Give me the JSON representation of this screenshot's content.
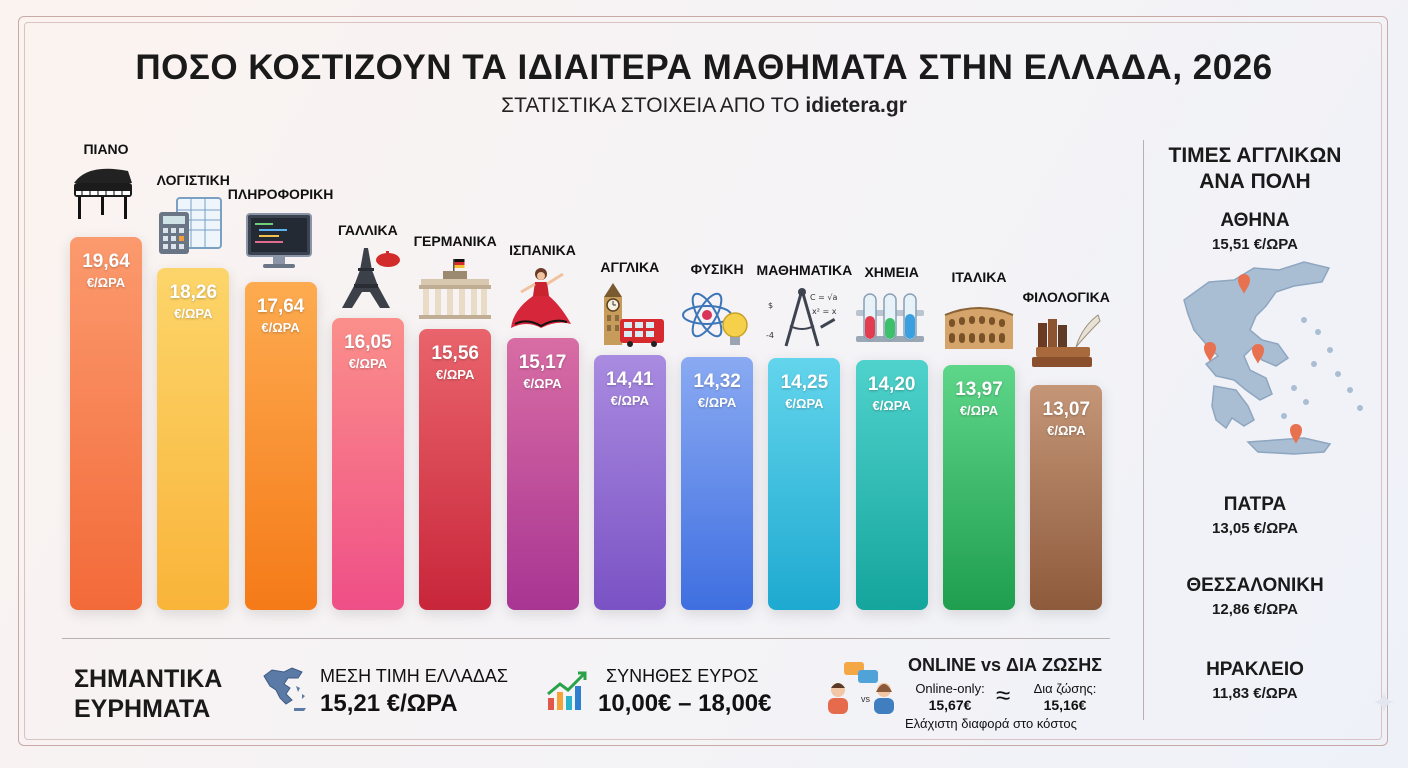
{
  "title": "ΠΟΣΟ ΚΟΣΤΙΖΟΥΝ ΤΑ ΙΔΙΑΙΤΕΡΑ ΜΑΘΗΜΑΤΑ ΣΤΗΝ ΕΛΛΑΔΑ, 2026",
  "subtitle_prefix": "ΣΤΑΤΙΣΤΙΚΑ ΣΤΟΙΧΕΙΑ ΑΠΟ ΤΟ",
  "subtitle_site": "idietera.gr",
  "chart_data": {
    "type": "bar",
    "categories": [
      "ΠΙΑΝΟ",
      "ΛΟΓΙΣΤΙΚΗ",
      "ΠΛΗΡΟΦΟΡΙΚΗ",
      "ΓΑΛΛΙΚΑ",
      "ΓΕΡΜΑΝΙΚΑ",
      "ΙΣΠΑΝΙΚΑ",
      "ΑΓΓΛΙΚΑ",
      "ΦΥΣΙΚΗ",
      "ΜΑΘΗΜΑΤΙΚΑ",
      "ΧΗΜΕΙΑ",
      "ΙΤΑΛΙΚΑ",
      "ΦΙΛΟΛΟΓΙΚΑ"
    ],
    "values": [
      19.64,
      18.26,
      17.64,
      16.05,
      15.56,
      15.17,
      14.41,
      14.32,
      14.25,
      14.2,
      13.97,
      13.07
    ],
    "value_labels": [
      "19,64",
      "18,26",
      "17,64",
      "16,05",
      "15,56",
      "15,17",
      "14,41",
      "14,32",
      "14,25",
      "14,20",
      "13,97",
      "13,07"
    ],
    "unit": "€/ΩΡΑ",
    "icons": [
      "piano-icon",
      "calculator-spreadsheet-icon",
      "computer-monitor-icon",
      "eiffel-tower-icon",
      "brandenburg-gate-icon",
      "flamenco-dancer-icon",
      "big-ben-bus-icon",
      "atom-lightbulb-icon",
      "compass-formulas-icon",
      "test-tubes-icon",
      "colosseum-icon",
      "books-quill-icon"
    ],
    "colors": [
      [
        "#fb9a6e",
        "#f36a39"
      ],
      [
        "#fcd56a",
        "#f9b43a"
      ],
      [
        "#fdab50",
        "#f57a18"
      ],
      [
        "#fb8f8a",
        "#ef4f87"
      ],
      [
        "#e9646c",
        "#c8263a"
      ],
      [
        "#d86da4",
        "#a83592"
      ],
      [
        "#a98be0",
        "#7a52c4"
      ],
      [
        "#8aaaf2",
        "#3f6fe0"
      ],
      [
        "#63d5ec",
        "#1ea9d0"
      ],
      [
        "#4fd2cc",
        "#14a59c"
      ],
      [
        "#5ed689",
        "#1f9e4f"
      ],
      [
        "#c49677",
        "#8e5a3c"
      ]
    ],
    "ylim": [
      0,
      20
    ]
  },
  "findings": {
    "title_line1": "ΣΗΜΑΝΤΙΚΑ",
    "title_line2": "ΕΥΡΗΜΑΤΑ",
    "avg_label": "ΜΕΣΗ ΤΙΜΗ ΕΛΛΑΔΑΣ",
    "avg_value": "15,21 €/ΩΡΑ",
    "range_label": "ΣΥΝΗΘΕΣ ΕΥΡΟΣ",
    "range_value": "10,00€ – 18,00€",
    "cmp_title": "ONLINE vs ΔΙΑ ΖΩΣΗΣ",
    "vs": "vs",
    "online_label": "Online-only:",
    "online_value": "15,67€",
    "approx": "≈",
    "inperson_label": "Δια ζώσης:",
    "inperson_value": "15,16€",
    "note": "Ελάχιστη διαφορά στο κόστος"
  },
  "english_by_city": {
    "title_line1": "ΤΙΜΕΣ ΑΓΓΛΙΚΩΝ",
    "title_line2": "ΑΝΑ ΠΟΛΗ",
    "cities": [
      {
        "name": "ΑΘΗΝΑ",
        "price": "15,51 €/ΩΡΑ"
      },
      {
        "name": "ΠΑΤΡΑ",
        "price": "13,05 €/ΩΡΑ"
      },
      {
        "name": "ΘΕΣΣΑΛΟΝΙΚΗ",
        "price": "12,86 €/ΩΡΑ"
      },
      {
        "name": "ΗΡΑΚΛΕΙΟ",
        "price": "11,83 €/ΩΡΑ"
      }
    ]
  }
}
